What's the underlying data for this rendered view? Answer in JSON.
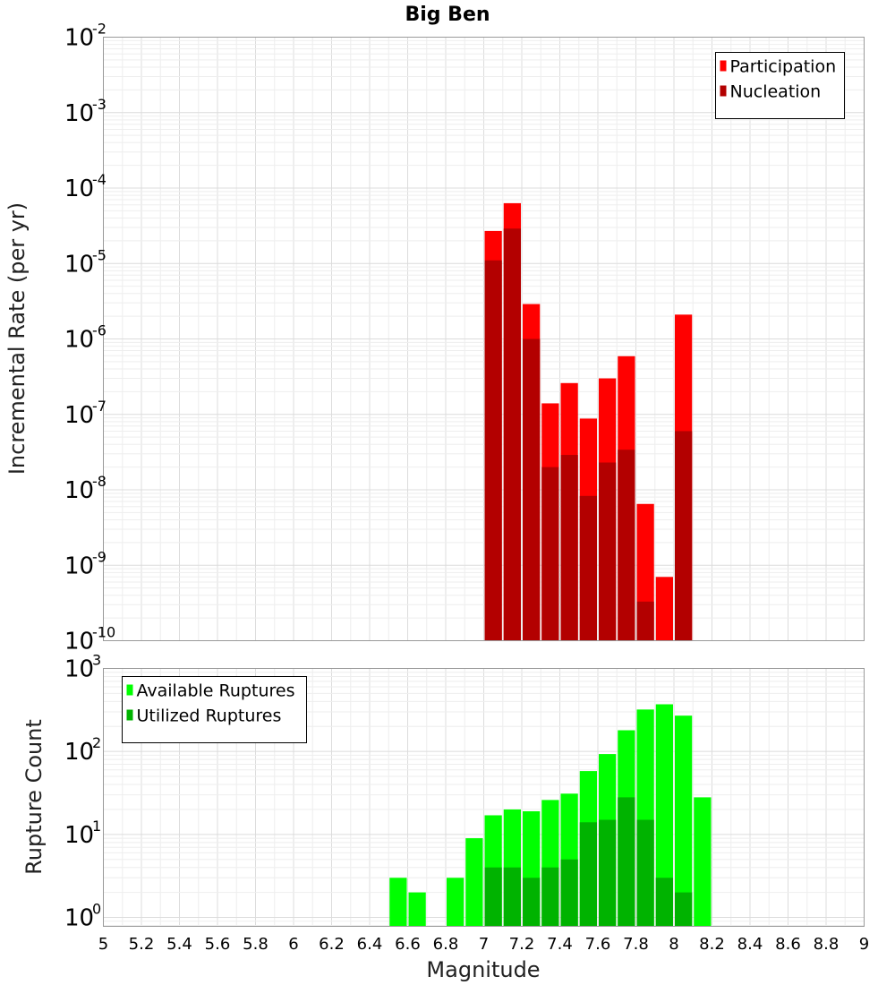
{
  "title": "Big Ben",
  "xlabel": "Magnitude",
  "chart_data": [
    {
      "type": "bar",
      "title": "Big Ben",
      "ylabel": "Incremental Rate (per yr)",
      "yscale": "log",
      "ylim": [
        1e-10,
        0.01
      ],
      "xlim": [
        5,
        9
      ],
      "x": [
        7.05,
        7.15,
        7.25,
        7.35,
        7.45,
        7.55,
        7.65,
        7.75,
        7.85,
        7.95,
        8.05
      ],
      "bar_width": 0.1,
      "legend_position": "top-right",
      "series": [
        {
          "name": "Participation",
          "color": "#ff0000",
          "values": [
            2.7e-05,
            6.3e-05,
            2.9e-06,
            1.4e-07,
            2.6e-07,
            8.8e-08,
            3e-07,
            5.9e-07,
            6.5e-09,
            7e-10,
            2.1e-06
          ]
        },
        {
          "name": "Nucleation",
          "color": "#b30000",
          "values": [
            1.1e-05,
            2.9e-05,
            1e-06,
            2e-08,
            2.9e-08,
            8.3e-09,
            2.3e-08,
            3.4e-08,
            3.3e-10,
            null,
            6e-08
          ]
        }
      ]
    },
    {
      "type": "bar",
      "ylabel": "Rupture Count",
      "yscale": "log",
      "ylim": [
        0.78,
        1000
      ],
      "xlim": [
        5,
        9
      ],
      "x": [
        6.55,
        6.65,
        6.75,
        6.85,
        6.95,
        7.05,
        7.15,
        7.25,
        7.35,
        7.45,
        7.55,
        7.65,
        7.75,
        7.85,
        7.95,
        8.05,
        8.15
      ],
      "bar_width": 0.1,
      "legend_position": "top-left",
      "series": [
        {
          "name": "Available Ruptures",
          "color": "#00ff00",
          "values": [
            3,
            2,
            null,
            3,
            9,
            17,
            20,
            19,
            26,
            31,
            58,
            93,
            180,
            320,
            370,
            270,
            28
          ]
        },
        {
          "name": "Utilized Ruptures",
          "color": "#00b300",
          "values": [
            null,
            null,
            null,
            null,
            null,
            4,
            4,
            3,
            4,
            5,
            14,
            15,
            28,
            15,
            3,
            2,
            null
          ]
        }
      ]
    }
  ],
  "xticks": [
    "5",
    "5.2",
    "5.4",
    "5.6",
    "5.8",
    "6",
    "6.2",
    "6.4",
    "6.6",
    "6.8",
    "7",
    "7.2",
    "7.4",
    "7.6",
    "7.8",
    "8",
    "8.2",
    "8.4",
    "8.6",
    "8.8",
    "9"
  ],
  "top_yticks": [
    {
      "base": "10",
      "exp": "-10",
      "value": 1e-10
    },
    {
      "base": "10",
      "exp": "-9",
      "value": 1e-09
    },
    {
      "base": "10",
      "exp": "-8",
      "value": 1e-08
    },
    {
      "base": "10",
      "exp": "-7",
      "value": 1e-07
    },
    {
      "base": "10",
      "exp": "-6",
      "value": 1e-06
    },
    {
      "base": "10",
      "exp": "-5",
      "value": 1e-05
    },
    {
      "base": "10",
      "exp": "-4",
      "value": 0.0001
    },
    {
      "base": "10",
      "exp": "-3",
      "value": 0.001
    },
    {
      "base": "10",
      "exp": "-2",
      "value": 0.01
    }
  ],
  "bottom_yticks": [
    {
      "base": "10",
      "exp": "0",
      "value": 1
    },
    {
      "base": "10",
      "exp": "1",
      "value": 10
    },
    {
      "base": "10",
      "exp": "2",
      "value": 100
    },
    {
      "base": "10",
      "exp": "3",
      "value": 1000
    }
  ]
}
